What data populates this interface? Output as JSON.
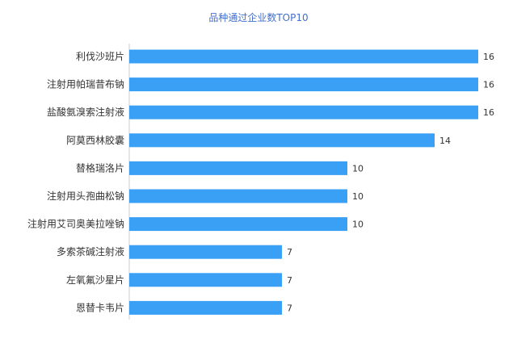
{
  "chart_data": {
    "type": "bar",
    "orientation": "horizontal",
    "title": "品种通过企业数TOP10",
    "categories": [
      "利伐沙班片",
      "注射用帕瑞昔布钠",
      "盐酸氨溴索注射液",
      "阿莫西林胶囊",
      "替格瑞洛片",
      "注射用头孢曲松钠",
      "注射用艾司奥美拉唑钠",
      "多索茶碱注射液",
      "左氧氟沙星片",
      "恩替卡韦片"
    ],
    "values": [
      16,
      16,
      16,
      14,
      10,
      10,
      10,
      7,
      7,
      7
    ],
    "xlim": [
      0,
      16
    ],
    "grid": false,
    "data_labels": true,
    "bar_color": "#3aa0f5"
  }
}
